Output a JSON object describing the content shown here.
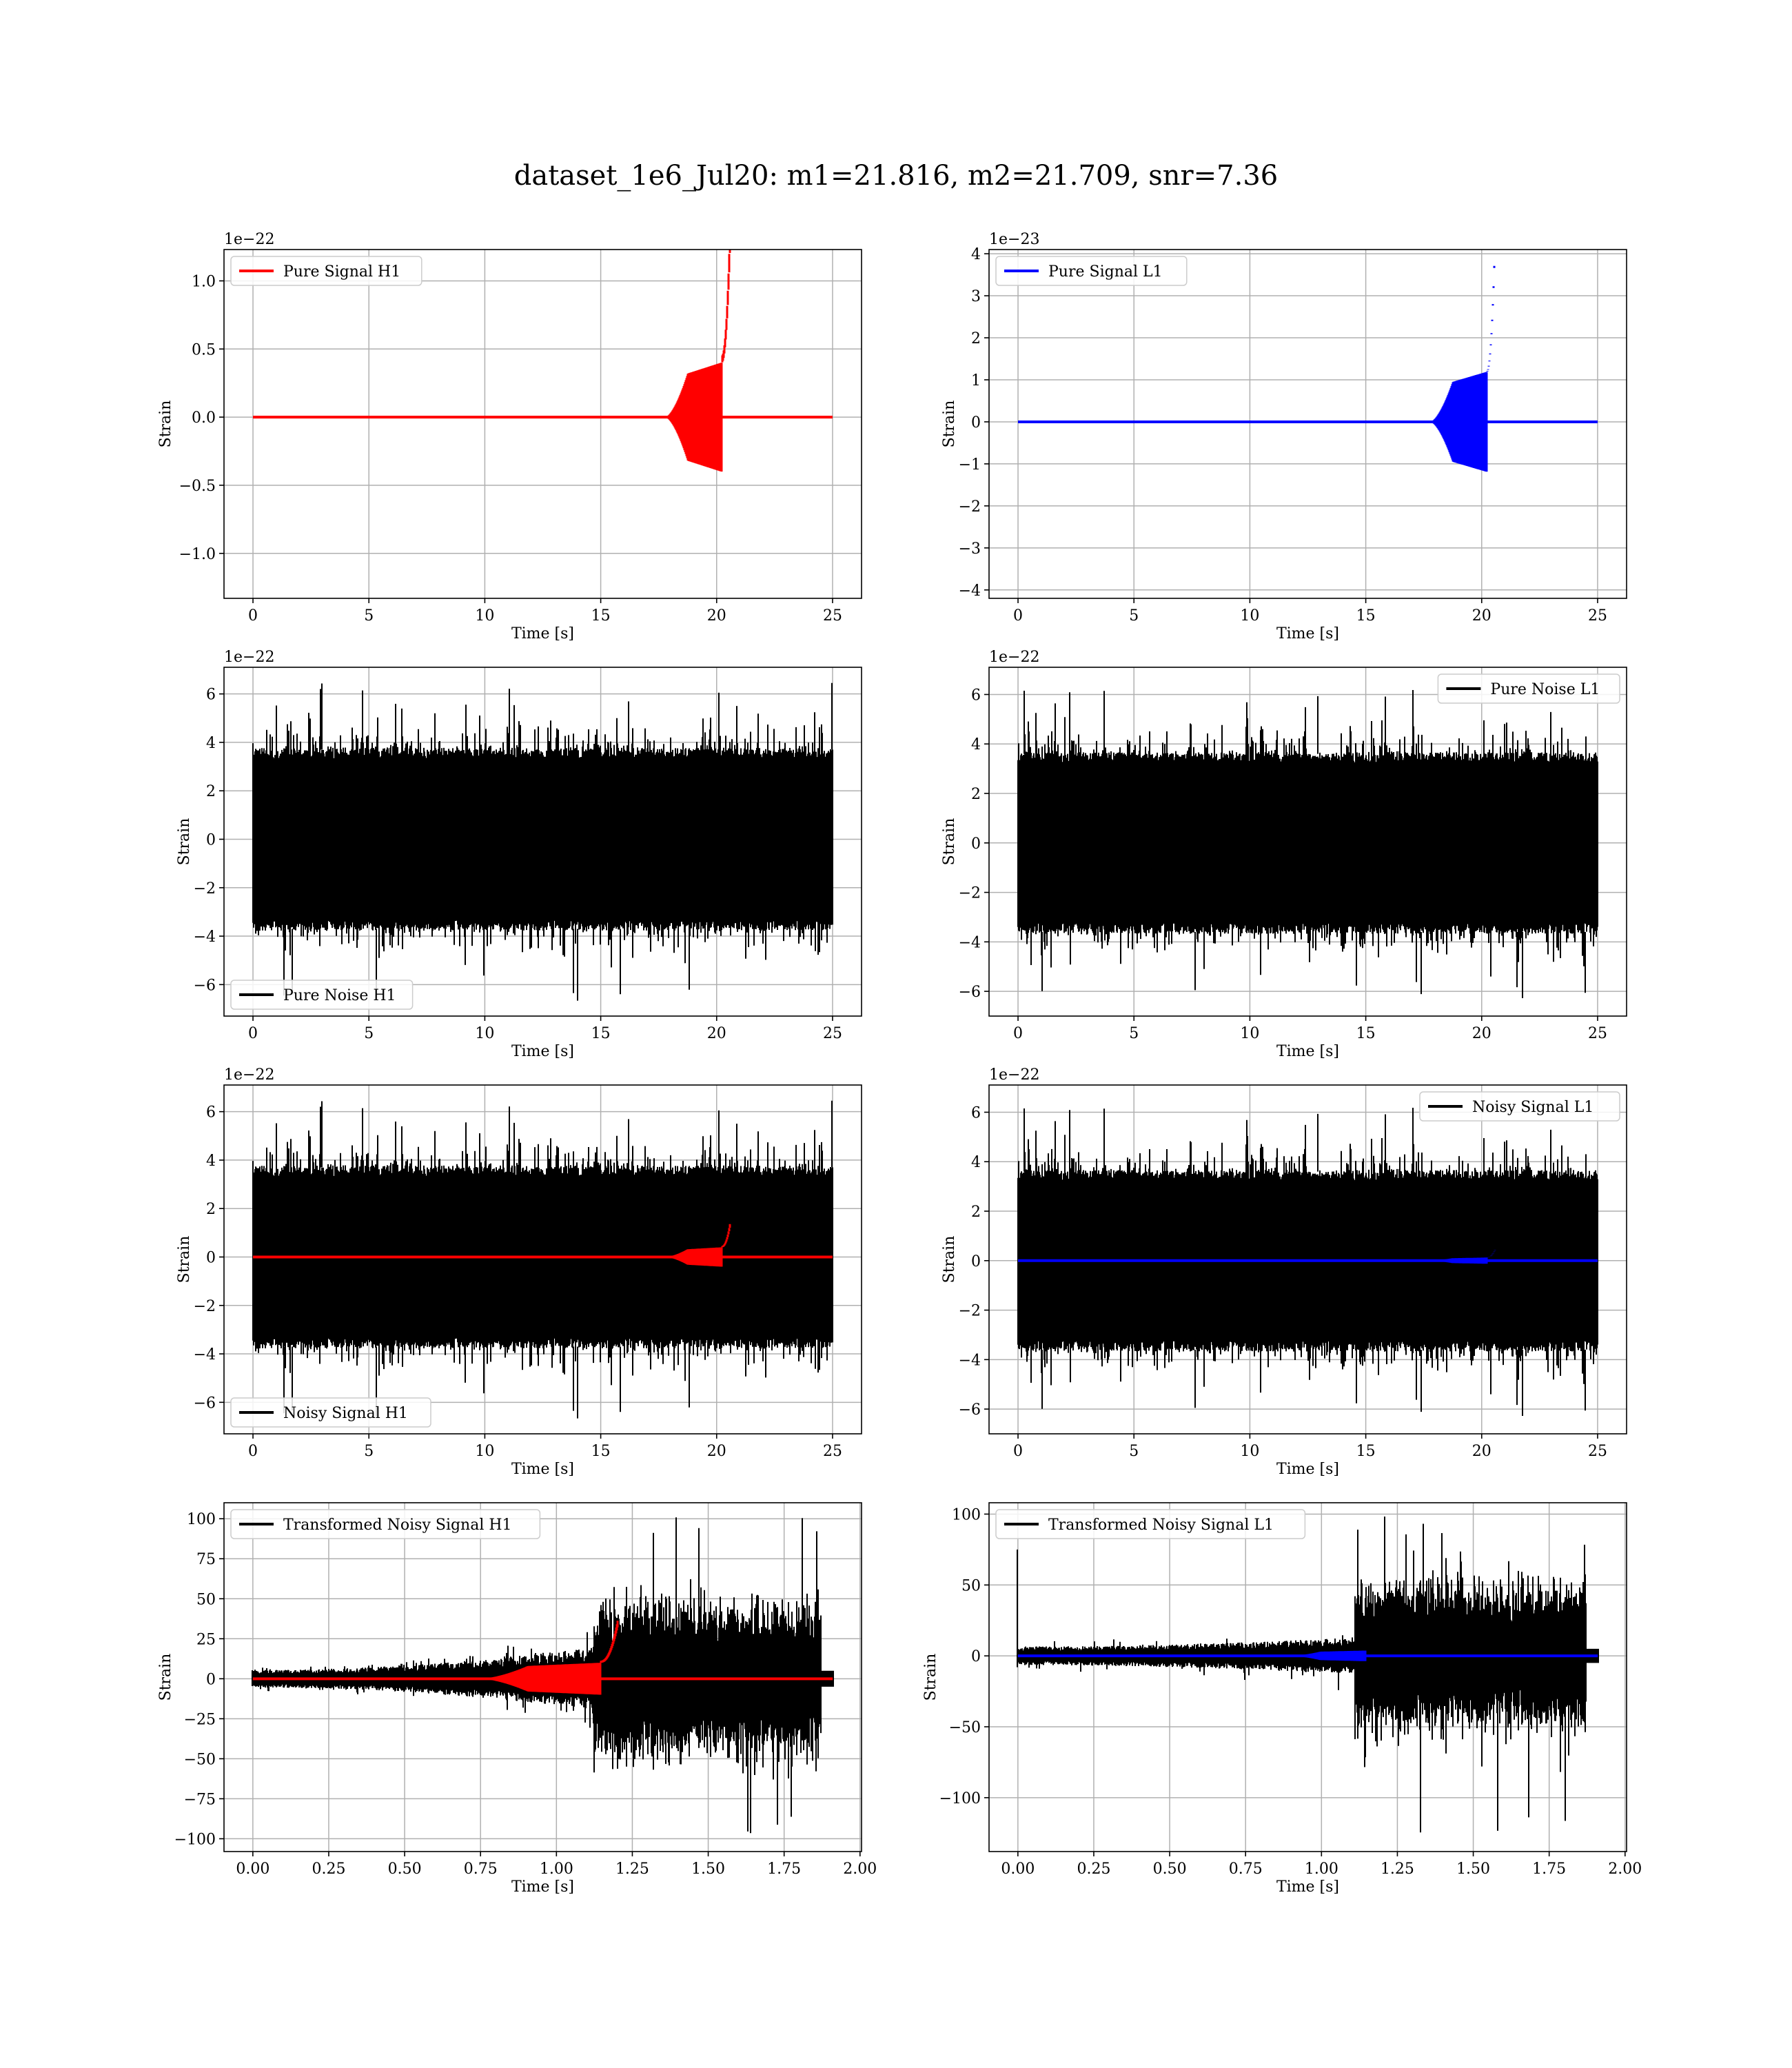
{
  "figure": {
    "title": "dataset_1e6_Jul20: m1=21.816, m2=21.709, snr=7.36"
  },
  "colors": {
    "h1_signal": "#ff0000",
    "l1_signal": "#0000ff",
    "noise": "#000000",
    "grid": "#b0b0b0"
  },
  "chart_data": [
    {
      "id": "pure-signal-h1",
      "type": "line",
      "detector": "H1",
      "xlabel": "Time [s]",
      "ylabel": "Strain",
      "offset_text": "1e−22",
      "xlim": [
        -1.25,
        26.25
      ],
      "ylim": [
        -1.33,
        1.23
      ],
      "xticks": [
        0,
        5,
        10,
        15,
        20,
        25
      ],
      "xtick_labels": [
        "0",
        "5",
        "10",
        "15",
        "20",
        "25"
      ],
      "yticks": [
        -1.0,
        -0.5,
        0.0,
        0.5,
        1.0
      ],
      "ytick_labels": [
        "−1.0",
        "−0.5",
        "0.0",
        "0.5",
        "1.0"
      ],
      "grid": true,
      "legend_loc": "upper-left",
      "series": [
        {
          "name": "Pure Signal H1",
          "color": "#ff0000",
          "kind": "chirp",
          "x_range": [
            0,
            25
          ],
          "merger_time": 20.55,
          "onset_time": 17.8,
          "pre_merger_amp": 0.32,
          "peak_amp": 1.1,
          "peak_amp_neg": -1.24
        }
      ]
    },
    {
      "id": "pure-signal-l1",
      "type": "line",
      "detector": "L1",
      "xlabel": "Time [s]",
      "ylabel": "Strain",
      "offset_text": "1e−23",
      "xlim": [
        -1.25,
        26.25
      ],
      "ylim": [
        -4.2,
        4.1
      ],
      "xticks": [
        0,
        5,
        10,
        15,
        20,
        25
      ],
      "xtick_labels": [
        "0",
        "5",
        "10",
        "15",
        "20",
        "25"
      ],
      "yticks": [
        -4,
        -3,
        -2,
        -1,
        0,
        1,
        2,
        3,
        4
      ],
      "ytick_labels": [
        "−4",
        "−3",
        "−2",
        "−1",
        "0",
        "1",
        "2",
        "3",
        "4"
      ],
      "grid": true,
      "legend_loc": "upper-left",
      "series": [
        {
          "name": "Pure Signal L1",
          "color": "#0000ff",
          "kind": "chirp",
          "x_range": [
            0,
            25
          ],
          "merger_time": 20.55,
          "onset_time": 17.8,
          "pre_merger_amp": 0.95,
          "peak_amp": 3.8,
          "peak_amp_neg": -3.85
        }
      ]
    },
    {
      "id": "pure-noise-h1",
      "type": "line",
      "detector": "H1",
      "xlabel": "Time [s]",
      "ylabel": "Strain",
      "offset_text": "1e−22",
      "xlim": [
        -1.25,
        26.25
      ],
      "ylim": [
        -7.3,
        7.1
      ],
      "xticks": [
        0,
        5,
        10,
        15,
        20,
        25
      ],
      "xtick_labels": [
        "0",
        "5",
        "10",
        "15",
        "20",
        "25"
      ],
      "yticks": [
        -6,
        -4,
        -2,
        0,
        2,
        4,
        6
      ],
      "ytick_labels": [
        "−6",
        "−4",
        "−2",
        "0",
        "2",
        "4",
        "6"
      ],
      "grid": true,
      "legend_loc": "lower-left",
      "series": [
        {
          "name": "Pure Noise H1",
          "color": "#000000",
          "kind": "noise",
          "x_range": [
            0,
            25
          ],
          "band": 3.7,
          "max": 6.5,
          "min": -6.8,
          "seed": 11
        }
      ]
    },
    {
      "id": "pure-noise-l1",
      "type": "line",
      "detector": "L1",
      "xlabel": "Time [s]",
      "ylabel": "Strain",
      "offset_text": "1e−22",
      "xlim": [
        -1.25,
        26.25
      ],
      "ylim": [
        -7.0,
        7.1
      ],
      "xticks": [
        0,
        5,
        10,
        15,
        20,
        25
      ],
      "xtick_labels": [
        "0",
        "5",
        "10",
        "15",
        "20",
        "25"
      ],
      "yticks": [
        -6,
        -4,
        -2,
        0,
        2,
        4,
        6
      ],
      "ytick_labels": [
        "−6",
        "−4",
        "−2",
        "0",
        "2",
        "4",
        "6"
      ],
      "grid": true,
      "legend_loc": "upper-right",
      "series": [
        {
          "name": "Pure Noise L1",
          "color": "#000000",
          "kind": "noise",
          "x_range": [
            0,
            25
          ],
          "band": 3.6,
          "max": 6.3,
          "min": -6.3,
          "seed": 23
        }
      ]
    },
    {
      "id": "noisy-signal-h1",
      "type": "line",
      "detector": "H1",
      "xlabel": "Time [s]",
      "ylabel": "Strain",
      "offset_text": "1e−22",
      "xlim": [
        -1.25,
        26.25
      ],
      "ylim": [
        -7.3,
        7.1
      ],
      "xticks": [
        0,
        5,
        10,
        15,
        20,
        25
      ],
      "xtick_labels": [
        "0",
        "5",
        "10",
        "15",
        "20",
        "25"
      ],
      "yticks": [
        -6,
        -4,
        -2,
        0,
        2,
        4,
        6
      ],
      "ytick_labels": [
        "−6",
        "−4",
        "−2",
        "0",
        "2",
        "4",
        "6"
      ],
      "grid": true,
      "legend_loc": "lower-left",
      "series": [
        {
          "name": "Noisy Signal H1",
          "color": "#000000",
          "kind": "noise",
          "x_range": [
            0,
            25
          ],
          "band": 3.7,
          "max": 6.5,
          "min": -6.8,
          "seed": 11
        },
        {
          "name": "",
          "color": "#ff0000",
          "kind": "chirp",
          "x_range": [
            0,
            25
          ],
          "merger_time": 20.55,
          "onset_time": 17.8,
          "pre_merger_amp": 0.32,
          "peak_amp": 1.1,
          "peak_amp_neg": -1.24
        }
      ]
    },
    {
      "id": "noisy-signal-l1",
      "type": "line",
      "detector": "L1",
      "xlabel": "Time [s]",
      "ylabel": "Strain",
      "offset_text": "1e−22",
      "xlim": [
        -1.25,
        26.25
      ],
      "ylim": [
        -7.0,
        7.1
      ],
      "xticks": [
        0,
        5,
        10,
        15,
        20,
        25
      ],
      "xtick_labels": [
        "0",
        "5",
        "10",
        "15",
        "20",
        "25"
      ],
      "yticks": [
        -6,
        -4,
        -2,
        0,
        2,
        4,
        6
      ],
      "ytick_labels": [
        "−6",
        "−4",
        "−2",
        "0",
        "2",
        "4",
        "6"
      ],
      "grid": true,
      "legend_loc": "upper-right",
      "series": [
        {
          "name": "Noisy Signal L1",
          "color": "#000000",
          "kind": "noise",
          "x_range": [
            0,
            25
          ],
          "band": 3.6,
          "max": 6.3,
          "min": -6.3,
          "seed": 23
        },
        {
          "name": "",
          "color": "#0000ff",
          "kind": "chirp",
          "x_range": [
            0,
            25
          ],
          "merger_time": 20.55,
          "onset_time": 17.8,
          "pre_merger_amp": 0.1,
          "peak_amp": 0.38,
          "peak_amp_neg": -0.39
        }
      ]
    },
    {
      "id": "transformed-noisy-signal-h1",
      "type": "line",
      "detector": "H1",
      "xlabel": "Time [s]",
      "ylabel": "Strain",
      "offset_text": "",
      "xlim": [
        -0.095,
        2.005
      ],
      "ylim": [
        -108,
        110
      ],
      "xticks": [
        0.0,
        0.25,
        0.5,
        0.75,
        1.0,
        1.25,
        1.5,
        1.75,
        2.0
      ],
      "xtick_labels": [
        "0.00",
        "0.25",
        "0.50",
        "0.75",
        "1.00",
        "1.25",
        "1.50",
        "1.75",
        "2.00"
      ],
      "yticks": [
        -100,
        -75,
        -50,
        -25,
        0,
        25,
        50,
        75,
        100
      ],
      "ytick_labels": [
        "−100",
        "−75",
        "−50",
        "−25",
        "0",
        "25",
        "50",
        "75",
        "100"
      ],
      "grid": true,
      "legend_loc": "upper-left",
      "series": [
        {
          "name": "Transformed Noisy Signal H1",
          "color": "#000000",
          "kind": "whitened",
          "x_range": [
            0,
            1.91
          ],
          "noise_end": 1.87,
          "jump_time": 1.12,
          "pre_amp": 5,
          "late_amp": 18,
          "post_band": 42,
          "max": 101,
          "min": -99,
          "seed": 37
        },
        {
          "name": "",
          "color": "#ff0000",
          "kind": "chirp",
          "x_range": [
            0,
            1.91
          ],
          "merger_time": 1.2,
          "onset_time": 0.75,
          "pre_merger_amp": 8,
          "peak_amp": 31,
          "peak_amp_neg": -35
        }
      ]
    },
    {
      "id": "transformed-noisy-signal-l1",
      "type": "line",
      "detector": "L1",
      "xlabel": "Time [s]",
      "ylabel": "Strain",
      "offset_text": "",
      "xlim": [
        -0.095,
        2.005
      ],
      "ylim": [
        -138,
        108
      ],
      "xticks": [
        0.0,
        0.25,
        0.5,
        0.75,
        1.0,
        1.25,
        1.5,
        1.75,
        2.0
      ],
      "xtick_labels": [
        "0.00",
        "0.25",
        "0.50",
        "0.75",
        "1.00",
        "1.25",
        "1.50",
        "1.75",
        "2.00"
      ],
      "yticks": [
        -100,
        -50,
        0,
        50,
        100
      ],
      "ytick_labels": [
        "−100",
        "−50",
        "0",
        "50",
        "100"
      ],
      "grid": true,
      "legend_loc": "upper-left",
      "series": [
        {
          "name": "Transformed Noisy Signal L1",
          "color": "#000000",
          "kind": "whitened",
          "x_range": [
            0,
            1.91
          ],
          "noise_end": 1.87,
          "jump_time": 1.11,
          "pre_amp": 6,
          "late_amp": 12,
          "post_band": 45,
          "max": 100,
          "min": -128,
          "start_spike": 75,
          "seed": 53
        },
        {
          "name": "",
          "color": "#0000ff",
          "kind": "chirp",
          "x_range": [
            0,
            1.91
          ],
          "merger_time": 1.18,
          "onset_time": 0.9,
          "pre_merger_amp": 3,
          "peak_amp": 10,
          "peak_amp_neg": -10
        }
      ]
    }
  ]
}
